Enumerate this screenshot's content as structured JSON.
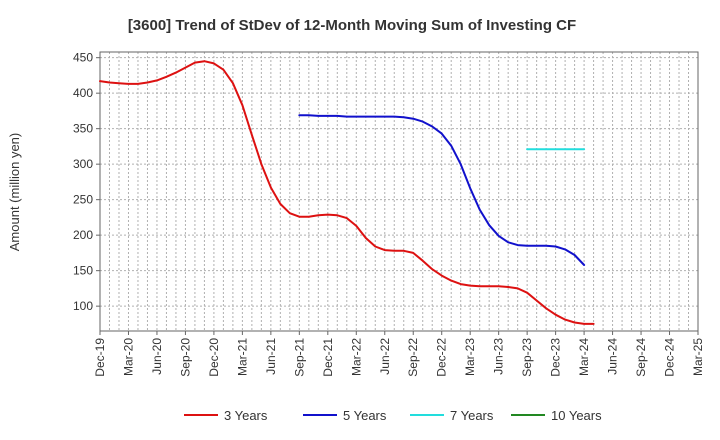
{
  "chart_data": {
    "type": "line",
    "title": "[3600]  Trend of StDev of 12-Month Moving Sum of Investing CF",
    "xlabel": "",
    "ylabel": "Amount (million yen)",
    "ylim": [
      65,
      458
    ],
    "yticks": [
      100,
      150,
      200,
      250,
      300,
      350,
      400,
      450
    ],
    "x_range": [
      "2019-12",
      "2025-03"
    ],
    "x_ticks": [
      "Dec-19",
      "Mar-20",
      "Jun-20",
      "Sep-20",
      "Dec-20",
      "Mar-21",
      "Jun-21",
      "Sep-21",
      "Dec-21",
      "Mar-22",
      "Jun-22",
      "Sep-22",
      "Dec-22",
      "Mar-23",
      "Jun-23",
      "Sep-23",
      "Dec-23",
      "Mar-24",
      "Jun-24",
      "Sep-24",
      "Dec-24",
      "Mar-25"
    ],
    "grid": true,
    "legend_position": "bottom",
    "series": [
      {
        "name": "3 Years",
        "color": "#dd1111",
        "points": [
          [
            "2019-12",
            417
          ],
          [
            "2020-01",
            415
          ],
          [
            "2020-02",
            414
          ],
          [
            "2020-03",
            413
          ],
          [
            "2020-04",
            413
          ],
          [
            "2020-05",
            415
          ],
          [
            "2020-06",
            418
          ],
          [
            "2020-07",
            423
          ],
          [
            "2020-08",
            429
          ],
          [
            "2020-09",
            436
          ],
          [
            "2020-10",
            443
          ],
          [
            "2020-11",
            445
          ],
          [
            "2020-12",
            442
          ],
          [
            "2021-01",
            433
          ],
          [
            "2021-02",
            414
          ],
          [
            "2021-03",
            383
          ],
          [
            "2021-04",
            341
          ],
          [
            "2021-05",
            300
          ],
          [
            "2021-06",
            267
          ],
          [
            "2021-07",
            244
          ],
          [
            "2021-08",
            231
          ],
          [
            "2021-09",
            226
          ],
          [
            "2021-10",
            226
          ],
          [
            "2021-11",
            228
          ],
          [
            "2021-12",
            229
          ],
          [
            "2022-01",
            228
          ],
          [
            "2022-02",
            224
          ],
          [
            "2022-03",
            213
          ],
          [
            "2022-04",
            196
          ],
          [
            "2022-05",
            184
          ],
          [
            "2022-06",
            179
          ],
          [
            "2022-07",
            178
          ],
          [
            "2022-08",
            178
          ],
          [
            "2022-09",
            175
          ],
          [
            "2022-10",
            164
          ],
          [
            "2022-11",
            152
          ],
          [
            "2022-12",
            143
          ],
          [
            "2023-01",
            136
          ],
          [
            "2023-02",
            131
          ],
          [
            "2023-03",
            129
          ],
          [
            "2023-04",
            128
          ],
          [
            "2023-05",
            128
          ],
          [
            "2023-06",
            128
          ],
          [
            "2023-07",
            127
          ],
          [
            "2023-08",
            125
          ],
          [
            "2023-09",
            119
          ],
          [
            "2023-10",
            108
          ],
          [
            "2023-11",
            97
          ],
          [
            "2023-12",
            88
          ],
          [
            "2024-01",
            81
          ],
          [
            "2024-02",
            77
          ],
          [
            "2024-03",
            75
          ],
          [
            "2024-04",
            75
          ]
        ]
      },
      {
        "name": "5 Years",
        "color": "#1111cc",
        "points": [
          [
            "2021-09",
            369
          ],
          [
            "2021-10",
            369
          ],
          [
            "2021-11",
            368
          ],
          [
            "2021-12",
            368
          ],
          [
            "2022-01",
            368
          ],
          [
            "2022-02",
            367
          ],
          [
            "2022-03",
            367
          ],
          [
            "2022-04",
            367
          ],
          [
            "2022-05",
            367
          ],
          [
            "2022-06",
            367
          ],
          [
            "2022-07",
            367
          ],
          [
            "2022-08",
            366
          ],
          [
            "2022-09",
            364
          ],
          [
            "2022-10",
            360
          ],
          [
            "2022-11",
            353
          ],
          [
            "2022-12",
            343
          ],
          [
            "2023-01",
            326
          ],
          [
            "2023-02",
            300
          ],
          [
            "2023-03",
            266
          ],
          [
            "2023-04",
            236
          ],
          [
            "2023-05",
            214
          ],
          [
            "2023-06",
            199
          ],
          [
            "2023-07",
            190
          ],
          [
            "2023-08",
            186
          ],
          [
            "2023-09",
            185
          ],
          [
            "2023-10",
            185
          ],
          [
            "2023-11",
            185
          ],
          [
            "2023-12",
            184
          ],
          [
            "2024-01",
            180
          ],
          [
            "2024-02",
            172
          ],
          [
            "2024-03",
            158
          ]
        ]
      },
      {
        "name": "7 Years",
        "color": "#22dddd",
        "points": [
          [
            "2023-09",
            321
          ],
          [
            "2023-10",
            321
          ],
          [
            "2023-11",
            321
          ],
          [
            "2023-12",
            321
          ],
          [
            "2024-01",
            321
          ],
          [
            "2024-02",
            321
          ],
          [
            "2024-03",
            321
          ]
        ]
      },
      {
        "name": "10 Years",
        "color": "#228822",
        "points": []
      }
    ]
  }
}
